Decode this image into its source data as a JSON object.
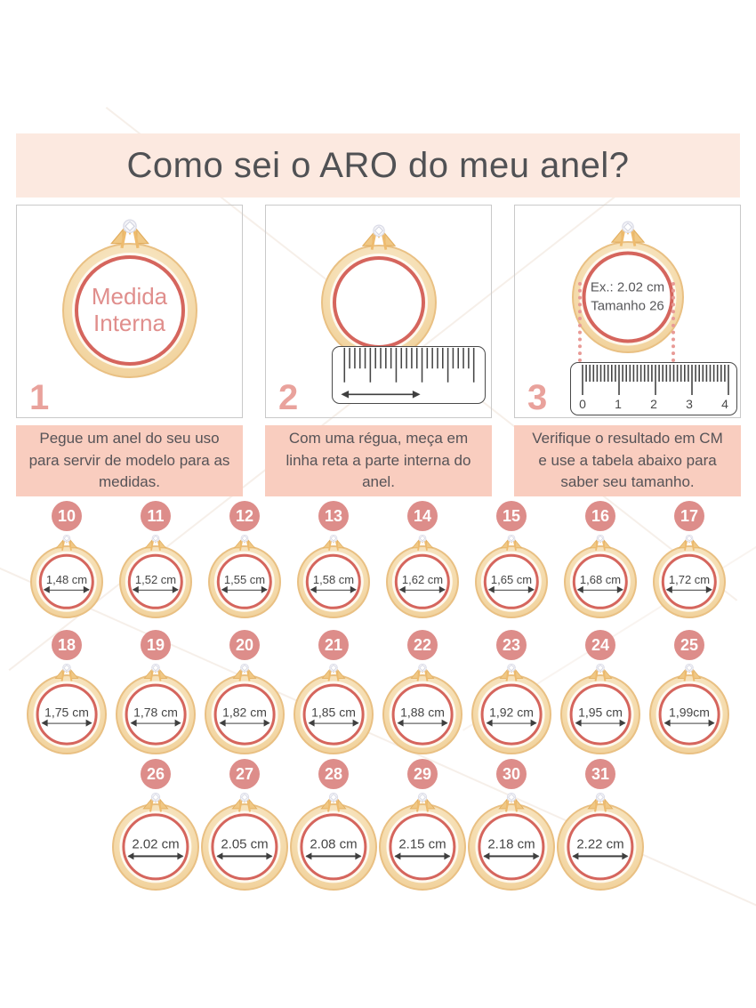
{
  "title": "Como sei o ARO do meu anel?",
  "steps": [
    {
      "number": "1",
      "ring_label_lines": [
        "Medida",
        "Interna"
      ],
      "caption": "Pegue um anel do seu uso para servir de modelo para as medidas."
    },
    {
      "number": "2",
      "caption": "Com uma régua, meça em linha reta a parte interna do anel."
    },
    {
      "number": "3",
      "ring_label_lines": [
        "Ex.: 2.02 cm",
        "Tamanho 26"
      ],
      "ruler_numbers": [
        "0",
        "1",
        "2",
        "3",
        "4"
      ],
      "caption": "Verifique o resultado em CM e use a tabela abaixo para saber seu tamanho."
    }
  ],
  "size_table": {
    "rows": [
      [
        {
          "size": "10",
          "measure": "1,48 cm"
        },
        {
          "size": "11",
          "measure": "1,52 cm"
        },
        {
          "size": "12",
          "measure": "1,55 cm"
        },
        {
          "size": "13",
          "measure": "1,58 cm"
        },
        {
          "size": "14",
          "measure": "1,62 cm"
        },
        {
          "size": "15",
          "measure": "1,65 cm"
        },
        {
          "size": "16",
          "measure": "1,68 cm"
        },
        {
          "size": "17",
          "measure": "1,72 cm"
        }
      ],
      [
        {
          "size": "18",
          "measure": "1,75 cm"
        },
        {
          "size": "19",
          "measure": "1,78 cm"
        },
        {
          "size": "20",
          "measure": "1,82 cm"
        },
        {
          "size": "21",
          "measure": "1,85 cm"
        },
        {
          "size": "22",
          "measure": "1,88 cm"
        },
        {
          "size": "23",
          "measure": "1,92 cm"
        },
        {
          "size": "24",
          "measure": "1,95 cm"
        },
        {
          "size": "25",
          "measure": "1,99cm"
        }
      ],
      [
        {
          "size": "26",
          "measure": "2.02 cm"
        },
        {
          "size": "27",
          "measure": "2.05 cm"
        },
        {
          "size": "28",
          "measure": "2.08 cm"
        },
        {
          "size": "29",
          "measure": "2.15 cm"
        },
        {
          "size": "30",
          "measure": "2.18 cm"
        },
        {
          "size": "31",
          "measure": "2.22 cm"
        }
      ]
    ]
  },
  "colors": {
    "banner-bg": "#fce9e0",
    "caption-bg": "#f9cdbf",
    "accent-pink": "#dd8d8a",
    "title-gray": "#505154",
    "gold": "#f5dcae",
    "gold-border": "#e9c083",
    "red-ring": "#d5655d",
    "label-pink": "#e08e8c",
    "step-number-pink": "#e9a29c",
    "dot-pink": "#e89a96"
  }
}
